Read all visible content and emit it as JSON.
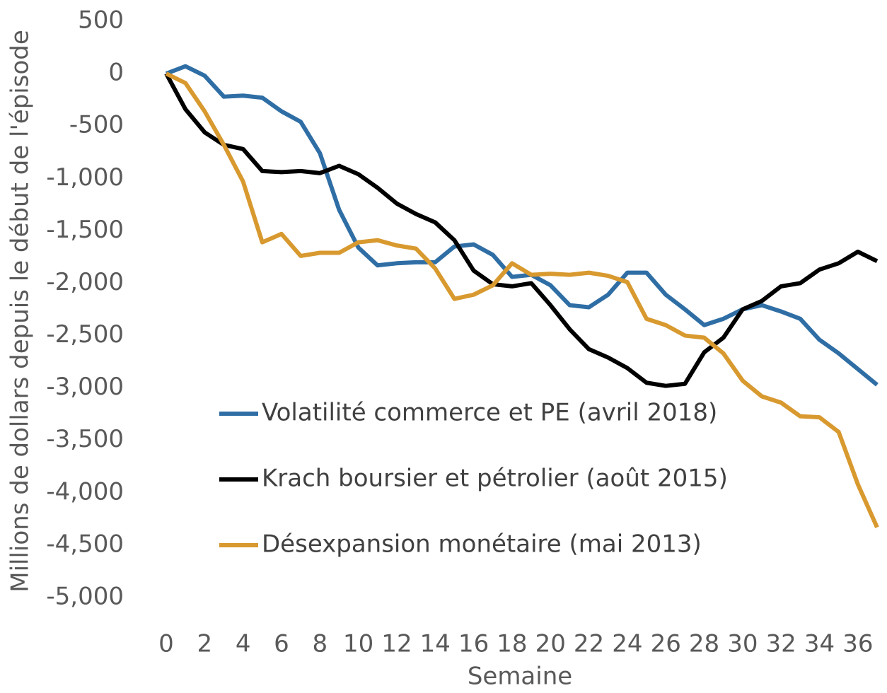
{
  "chart_data": {
    "type": "line",
    "x_label": "Semaine",
    "y_label": "Millions de dollars depuis le début de l'épisode",
    "x": [
      0,
      1,
      2,
      3,
      4,
      5,
      6,
      7,
      8,
      9,
      10,
      11,
      12,
      13,
      14,
      15,
      16,
      17,
      18,
      19,
      20,
      21,
      22,
      23,
      24,
      25,
      26,
      27,
      28,
      29,
      30,
      31,
      32,
      33,
      34,
      35,
      36,
      37
    ],
    "xlim": [
      0,
      37
    ],
    "xticks": [
      0,
      2,
      4,
      6,
      8,
      10,
      12,
      14,
      16,
      18,
      20,
      22,
      24,
      26,
      28,
      30,
      32,
      34,
      36
    ],
    "ylim": [
      -5000,
      500
    ],
    "yticks": [
      500,
      0,
      -500,
      {
        "value": -1000,
        "label": "-1,000"
      },
      {
        "value": -1500,
        "label": "-1,500"
      },
      {
        "value": -2000,
        "label": "-2,000"
      },
      {
        "value": -2500,
        "label": "-2,500"
      },
      {
        "value": -3000,
        "label": "-3,000"
      },
      {
        "value": -3500,
        "label": "-3,500"
      },
      {
        "value": -4000,
        "label": "-4,000"
      },
      {
        "value": -4500,
        "label": "-4,500"
      },
      {
        "value": -5000,
        "label": "-5,000"
      }
    ],
    "grid": false,
    "series": [
      {
        "name": "Volatilité commerce et PE (avril 2018)",
        "color": "#2f6ea5",
        "values": [
          0,
          70,
          -20,
          -220,
          -210,
          -230,
          -360,
          -460,
          -760,
          -1300,
          -1660,
          -1830,
          -1810,
          -1800,
          -1800,
          -1650,
          -1630,
          -1730,
          -1940,
          -1920,
          -2020,
          -2210,
          -2230,
          -2110,
          -1900,
          -1900,
          -2110,
          -2250,
          -2400,
          -2340,
          -2250,
          -2210,
          -2270,
          -2340,
          -2540,
          -2670,
          -2820,
          -2970
        ]
      },
      {
        "name": "Krach boursier et pétrolier (août 2015)",
        "color": "#000000",
        "values": [
          0,
          -340,
          -560,
          -680,
          -720,
          -930,
          -940,
          -930,
          -950,
          -880,
          -960,
          -1090,
          -1240,
          -1340,
          -1420,
          -1590,
          -1880,
          -2010,
          -2030,
          -2000,
          -2210,
          -2440,
          -2630,
          -2710,
          -2810,
          -2950,
          -2980,
          -2960,
          -2660,
          -2520,
          -2250,
          -2170,
          -2030,
          -2000,
          -1870,
          -1810,
          -1700,
          -1790
        ]
      },
      {
        "name": "Désexpansion monétaire (mai 2013)",
        "color": "#d8992f",
        "values": [
          0,
          -90,
          -360,
          -680,
          -1030,
          -1610,
          -1530,
          -1740,
          -1710,
          -1710,
          -1610,
          -1590,
          -1640,
          -1670,
          -1860,
          -2150,
          -2110,
          -2020,
          -1810,
          -1920,
          -1910,
          -1920,
          -1900,
          -1930,
          -1990,
          -2340,
          -2400,
          -2500,
          -2520,
          -2670,
          -2930,
          -3080,
          -3140,
          -3270,
          -3280,
          -3420,
          -3920,
          -4330
        ]
      }
    ]
  }
}
